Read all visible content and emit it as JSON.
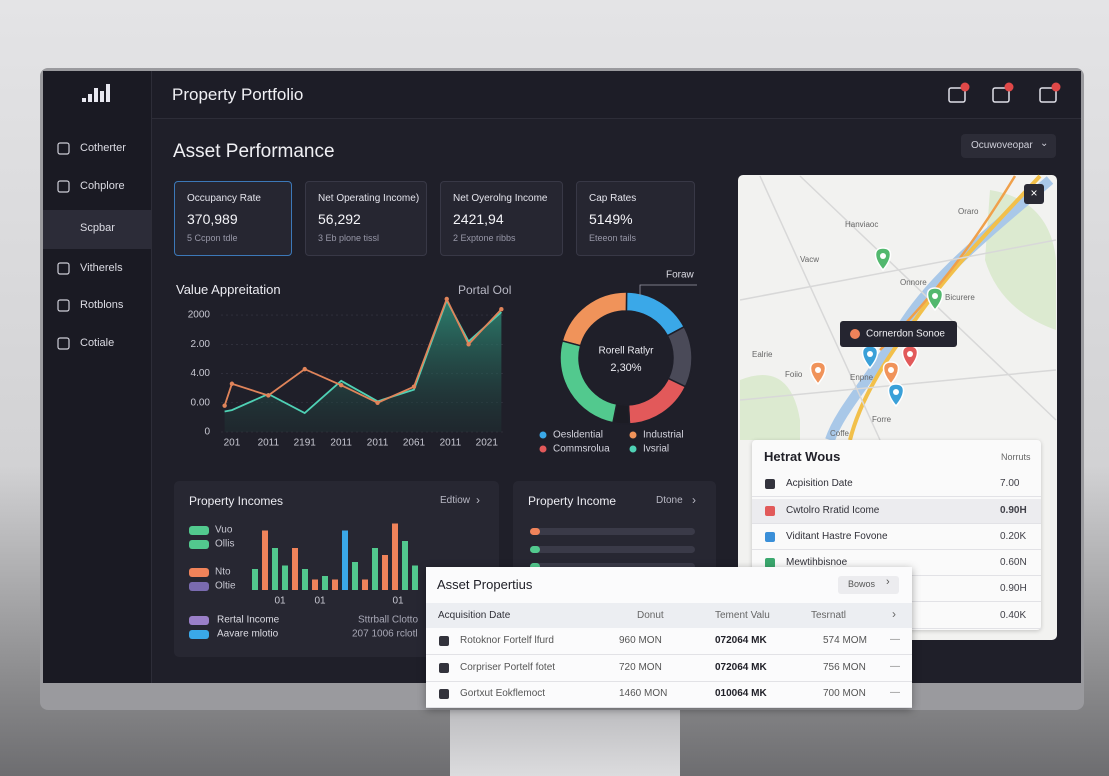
{
  "header": {
    "title": "Property Portfolio"
  },
  "sidebar": [
    "Cotherter",
    "Cohplore",
    "Scpbar",
    "Vitherels",
    "Rotblons",
    "Cotiale"
  ],
  "section_title": "Asset Performance",
  "dropdown": "Ocuwoveopar",
  "kpis": [
    {
      "label": "Occupancy Rate",
      "value": "370,989",
      "note": "5 Ccpon tdle"
    },
    {
      "label": "Net Operating Income)",
      "value": "56,292",
      "note": "3 Eb plone tissl"
    },
    {
      "label": "Net Oyerolng Income",
      "value": "2421,94",
      "note": "2 Exptone ribbs"
    },
    {
      "label": "Cap Rates",
      "value": "5149%",
      "note": "Eteeon tails"
    }
  ],
  "value_chart": {
    "type": "line",
    "title": "Value Appreitation",
    "legend": "Portal Ool",
    "categories": [
      "201",
      "2011",
      "2191",
      "2011",
      "2011",
      "2061",
      "2011",
      "2021"
    ],
    "x": [
      -0.2,
      0,
      1,
      2,
      3,
      4,
      5,
      5.9,
      6.5,
      7.4
    ],
    "xlim": [
      -0.3,
      7.5
    ],
    "ylim": [
      0,
      4.6
    ],
    "yticks": [
      {
        "value": 4,
        "label": "2000"
      },
      {
        "value": 3,
        "label": "2.00"
      },
      {
        "value": 2,
        "label": "4.00"
      },
      {
        "value": 1,
        "label": "0.00"
      },
      0
    ],
    "series": [
      {
        "color": "#e0845a",
        "values": [
          0.9,
          1.65,
          1.25,
          2.15,
          1.6,
          1.0,
          1.55,
          4.55,
          3.0,
          4.2
        ]
      },
      {
        "color": "#4fd1b5",
        "values": [
          0.7,
          0.75,
          1.3,
          0.65,
          1.75,
          1.05,
          1.45,
          4.5,
          3.1,
          4.1
        ]
      }
    ]
  },
  "donut": {
    "type": "pie",
    "callout": "Foraw",
    "center_label": "Rorell Ratlyr",
    "center_value": "2,30%",
    "values": [
      21,
      17,
      15,
      17,
      4,
      26
    ],
    "colors": [
      "#f0935a",
      "#3aa8e8",
      "#4a4a58",
      "#e2595a",
      "#1c1c24",
      "#52c98e"
    ],
    "legend": [
      {
        "name": "Oesldential",
        "color": "#3aa8e8"
      },
      {
        "name": "Industrial",
        "color": "#f0935a"
      },
      {
        "name": "Commsrolua",
        "color": "#e2595a"
      },
      {
        "name": "Ivsrial",
        "color": "#4fd1b5"
      }
    ]
  },
  "property_incomes": {
    "type": "bar",
    "title": "Property Incomes",
    "link": "Edtiow",
    "legend": [
      {
        "name": "Vuo",
        "color": "#52c98e"
      },
      {
        "name": "Ollis",
        "color": "#52c98e"
      },
      {
        "name": "Nto",
        "color": "#f0835a"
      },
      {
        "name": "Oltie",
        "color": "#7a6bb0"
      }
    ],
    "legend2": [
      {
        "name": "Rertal Income",
        "color": "#9a7fc8"
      },
      {
        "name": "Aavare mlotio",
        "color": "#3aa8e8"
      }
    ],
    "summary": [
      "Sttrball Clotto",
      "207 1006 rclotl"
    ],
    "categories": [
      "01",
      "01",
      "01"
    ],
    "ylim": [
      0,
      100
    ],
    "values": [
      30,
      85,
      60,
      35,
      60,
      30,
      15,
      20,
      15,
      85,
      40,
      15,
      60,
      50,
      95,
      70,
      35
    ],
    "colors": [
      "#52c98e",
      "#f0835a",
      "#52c98e",
      "#52c98e",
      "#f0835a",
      "#52c98e",
      "#f0835a",
      "#52c98e",
      "#f0835a",
      "#3aa8e8",
      "#52c98e",
      "#f0835a",
      "#52c98e",
      "#f0835a",
      "#f0835a",
      "#52c98e",
      "#52c98e"
    ]
  },
  "property_income": {
    "title": "Property Income",
    "link": "Dtone"
  },
  "map": {
    "label": "Cornerdon Sonoe",
    "places": [
      "Hanviaoc",
      "Oraro",
      "Vacw",
      "Onnore",
      "Bicurere",
      "Ealrie",
      "Foiio",
      "Enpne",
      "Forre",
      "Coffe"
    ]
  },
  "hottest": {
    "title": "Hetrat Wous",
    "link": "Norruts",
    "rows": [
      [
        "Acpisition Date",
        "7.00"
      ],
      [
        "Cwtolro Rratid Icome",
        "0.90H"
      ],
      [
        "Viditant Hastre Fovone",
        "0.20K"
      ],
      [
        "Mewtihbisnoe",
        "0.60N"
      ],
      [
        "",
        "0.90H"
      ],
      [
        "",
        "0.40K"
      ]
    ]
  },
  "asset_properties": {
    "title": "Asset Propertius",
    "button": "Bowos",
    "columns": [
      "Acquisition Date",
      "Donut",
      "Tement Valu",
      "Tesrnatl"
    ],
    "rows": [
      [
        "Rotoknor Fortelf lfurd",
        "960 MON",
        "072064 MK",
        "574 MOM"
      ],
      [
        "Corpriser Portelf fotet",
        "720 MON",
        "072064 MK",
        "756 MON"
      ],
      [
        "Gortxut Eokflemoct",
        "1460 MON",
        "010064 MK",
        "700 MON"
      ]
    ]
  }
}
